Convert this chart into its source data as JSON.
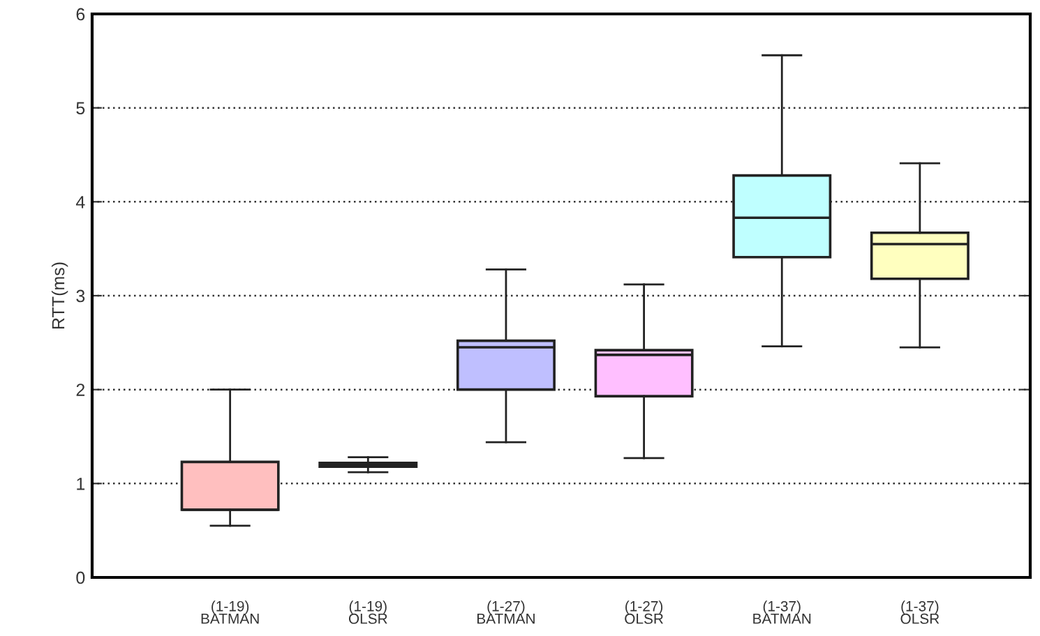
{
  "chart_data": {
    "type": "box",
    "ylabel": "RTT(ms)",
    "categories": [
      "(1-19)\nBATMAN",
      "(1-19)\nOLSR",
      "(1-27)\nBATMAN",
      "(1-27)\nOLSR",
      "(1-37)\nBATMAN",
      "(1-37)\nOLSR"
    ],
    "colors": [
      "#ffbfbf",
      "#ffbfbf",
      "#bfbfff",
      "#ffbfff",
      "#bfffff",
      "#ffffbf"
    ],
    "boxes": [
      {
        "low": 0.55,
        "q1": 0.72,
        "median": 0.72,
        "q3": 1.23,
        "high": 2.0
      },
      {
        "low": 1.12,
        "q1": 1.18,
        "median": 1.2,
        "q3": 1.22,
        "high": 1.28
      },
      {
        "low": 1.44,
        "q1": 2.0,
        "median": 2.45,
        "q3": 2.52,
        "high": 3.28
      },
      {
        "low": 1.27,
        "q1": 1.93,
        "median": 2.37,
        "q3": 2.42,
        "high": 3.12
      },
      {
        "low": 2.46,
        "q1": 3.41,
        "median": 3.83,
        "q3": 4.28,
        "high": 5.56
      },
      {
        "low": 2.45,
        "q1": 3.18,
        "median": 3.55,
        "q3": 3.67,
        "high": 4.41
      }
    ],
    "ylim": [
      0,
      6
    ],
    "yticks": [
      0,
      1,
      2,
      3,
      4,
      5,
      6
    ],
    "grid": "y"
  }
}
